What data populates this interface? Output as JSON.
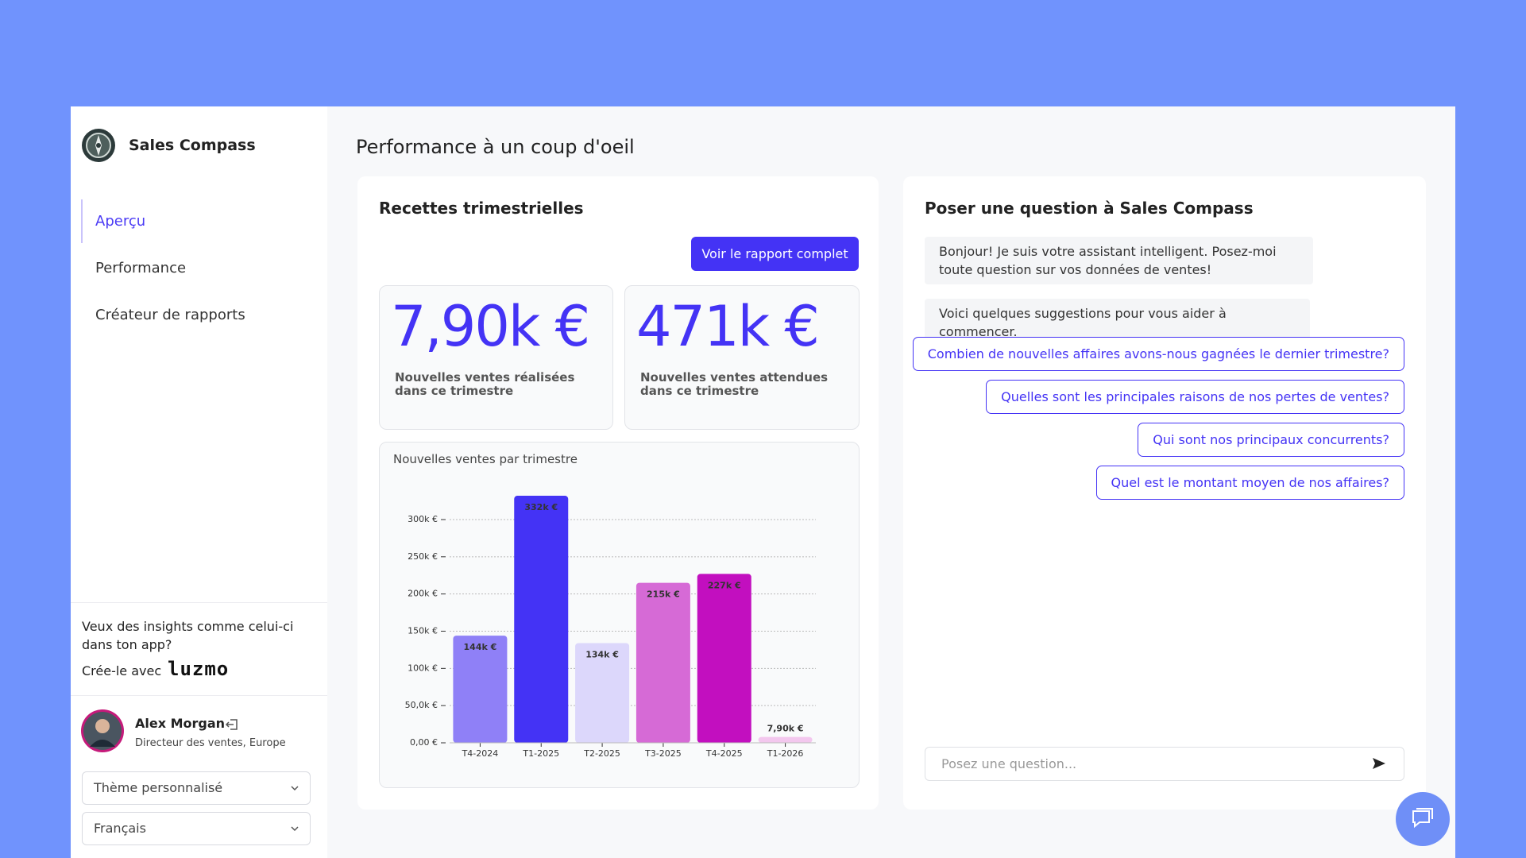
{
  "app": {
    "name": "Sales Compass",
    "nav": [
      "Aperçu",
      "Performance",
      "Créateur de rapports"
    ],
    "promo": {
      "text": "Veux des insights comme celui-ci dans ton app?",
      "cta": "Crée-le avec",
      "brand": "luzmo"
    },
    "user": {
      "name": "Alex Morgan",
      "role": "Directeur des ventes, Europe"
    },
    "selects": [
      "Thème personnalisé",
      "Français"
    ]
  },
  "page_title": "Performance à un coup d'oeil",
  "revenue_card": {
    "title": "Recettes trimestrielles",
    "button": "Voir le rapport complet",
    "kpis": [
      {
        "value": "7,90k €",
        "label": "Nouvelles ventes réalisées dans ce trimestre"
      },
      {
        "value": "471k €",
        "label": "Nouvelles ventes attendues dans ce trimestre"
      }
    ]
  },
  "chat": {
    "title": "Poser une question à Sales Compass",
    "messages": [
      "Bonjour! Je suis votre assistant intelligent. Posez-moi toute question sur vos données de ventes!",
      "Voici quelques suggestions pour vous aider à commencer."
    ],
    "suggestions": [
      "Combien de nouvelles affaires avons-nous gagnées le dernier trimestre?",
      "Quelles sont les principales raisons de nos pertes de ventes?",
      "Qui sont nos principaux concurrents?",
      "Quel est le montant moyen de nos affaires?"
    ],
    "placeholder": "Posez une question..."
  },
  "chart_data": {
    "type": "bar",
    "title": "Nouvelles ventes par trimestre",
    "categories": [
      "T4-2024",
      "T1-2025",
      "T2-2025",
      "T3-2025",
      "T4-2025",
      "T1-2026"
    ],
    "values": [
      144000,
      332000,
      134000,
      215000,
      227000,
      7900
    ],
    "value_labels": [
      "144k €",
      "332k €",
      "134k €",
      "215k €",
      "227k €",
      "7,90k €"
    ],
    "colors": [
      "#8f80f7",
      "#4433f5",
      "#dcd7fb",
      "#d66ad6",
      "#c20fbf",
      "#f3c7ee"
    ],
    "ylim": [
      0,
      340000
    ],
    "yticks": [
      {
        "value": 0,
        "label": "0,00 €"
      },
      {
        "value": 50000,
        "label": "50,0k €"
      },
      {
        "value": 100000,
        "label": "100k €"
      },
      {
        "value": 150000,
        "label": "150k €"
      },
      {
        "value": 200000,
        "label": "200k €"
      },
      {
        "value": 250000,
        "label": "250k €"
      },
      {
        "value": 300000,
        "label": "300k €"
      }
    ],
    "grid": true
  }
}
